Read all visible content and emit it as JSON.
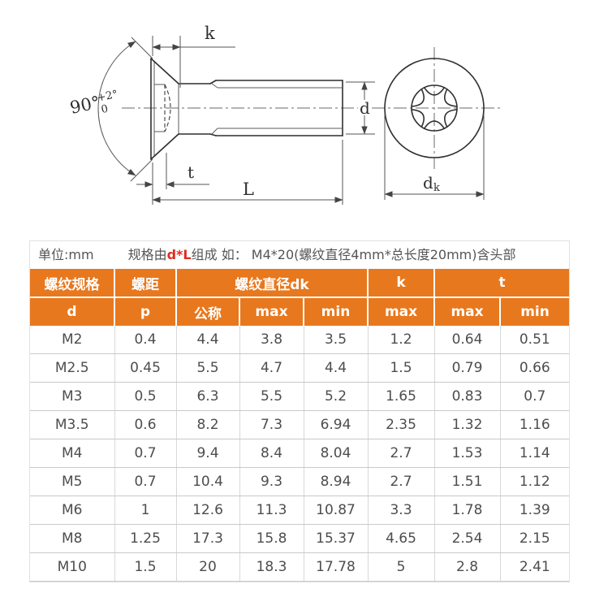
{
  "drawing": {
    "labels": {
      "k": "k",
      "t": "t",
      "L": "L",
      "d": "d",
      "dk_base": "d",
      "dk_sub": "k",
      "angle": "90°",
      "angle_tol_upper": "+2°",
      "angle_tol_lower": "0"
    }
  },
  "note": {
    "unit_label": "单位:mm",
    "spec_prefix": "规格由",
    "spec_highlight": "d*L",
    "spec_suffix": "组成 如： M4*20(螺纹直径4mm*总长度20mm)含头部"
  },
  "table": {
    "header": {
      "col_spec": "螺纹规格",
      "col_pitch": "螺距",
      "col_dk": "螺纹直径dk",
      "col_k": "k",
      "col_t": "t",
      "sub": [
        "d",
        "p",
        "公称",
        "max",
        "min",
        "max",
        "max",
        "min"
      ]
    },
    "rows": [
      [
        "M2",
        "0.4",
        "4.4",
        "3.8",
        "3.5",
        "1.2",
        "0.64",
        "0.51"
      ],
      [
        "M2.5",
        "0.45",
        "5.5",
        "4.7",
        "4.4",
        "1.5",
        "0.79",
        "0.66"
      ],
      [
        "M3",
        "0.5",
        "6.3",
        "5.5",
        "5.2",
        "1.65",
        "0.83",
        "0.7"
      ],
      [
        "M3.5",
        "0.6",
        "8.2",
        "7.3",
        "6.94",
        "2.35",
        "1.32",
        "1.16"
      ],
      [
        "M4",
        "0.7",
        "9.4",
        "8.4",
        "8.04",
        "2.7",
        "1.53",
        "1.14"
      ],
      [
        "M5",
        "0.7",
        "10.4",
        "9.3",
        "8.94",
        "2.7",
        "1.51",
        "1.12"
      ],
      [
        "M6",
        "1",
        "12.6",
        "11.3",
        "10.87",
        "3.3",
        "1.78",
        "1.39"
      ],
      [
        "M8",
        "1.25",
        "17.3",
        "15.8",
        "15.37",
        "4.65",
        "2.54",
        "2.15"
      ],
      [
        "M10",
        "1.5",
        "20",
        "18.3",
        "17.78",
        "5",
        "2.8",
        "2.41"
      ]
    ]
  },
  "colors": {
    "header_bg": "#e8781e",
    "note_highlight_red": "#e02b20",
    "body_text": "#4d4d4d",
    "drawing_line": "#2f2f2f"
  }
}
